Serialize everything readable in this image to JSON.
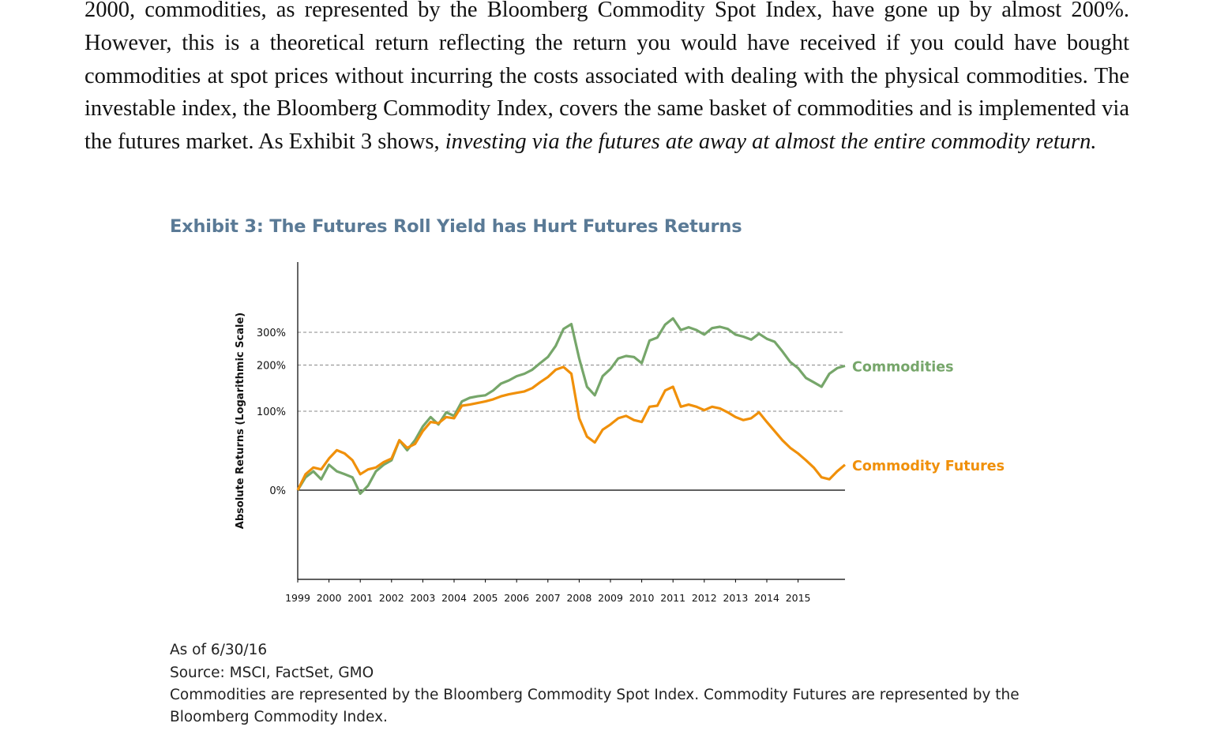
{
  "body_text": {
    "part1": "2000, commodities, as represented by the Bloomberg Commodity Spot Index, have gone up by almost 200%. However, this is a theoretical return reflecting the return you would have received if you could have bought commodities at spot prices without incurring the costs associated with dealing with the physical commodities. The investable index, the Bloomberg Commodity Index, covers the same basket of commodities and is implemented via the futures market. As Exhibit 3 shows, ",
    "emphasis": "investing via the futures ate away at almost the entire commodity return."
  },
  "exhibit_title": "Exhibit 3: The Futures Roll Yield has Hurt Futures Returns",
  "notes": {
    "as_of": "As of 6/30/16",
    "source": "Source: MSCI, FactSet, GMO",
    "disclaimer": "Commodities are represented by the Bloomberg Commodity Spot Index. Commodity Futures are represented by the Bloomberg Commodity Index."
  },
  "colors": {
    "commodities": "#76a66a",
    "futures": "#f0900a",
    "axis": "#000000",
    "grid": "#888888"
  },
  "chart_data": {
    "type": "line",
    "title": "Exhibit 3: The Futures Roll Yield has Hurt Futures Returns",
    "ylabel": "Absolute Returns (Logarithmic Scale)",
    "xlabel": "",
    "y_scale": "log(1+return)",
    "yticks": [
      0,
      100,
      200,
      300
    ],
    "ytick_labels": [
      "0%",
      "100%",
      "200%",
      "300%"
    ],
    "ylim": [
      -60,
      420
    ],
    "xlim": [
      1999.0,
      2016.5
    ],
    "xtick_labels": [
      "1999",
      "2000",
      "2001",
      "2002",
      "2003",
      "2004",
      "2005",
      "2006",
      "2007",
      "2008",
      "2009",
      "2010",
      "2011",
      "2012",
      "2013",
      "2014",
      "2015"
    ],
    "grid": "dashed horizontal at 100%, 200%, 300%",
    "legend": "inline labels at right end of lines",
    "series": [
      {
        "name": "Commodities",
        "color": "#76a66a",
        "x": [
          1999.0,
          1999.25,
          1999.5,
          1999.75,
          2000.0,
          2000.25,
          2000.5,
          2000.75,
          2001.0,
          2001.25,
          2001.5,
          2001.75,
          2002.0,
          2002.25,
          2002.5,
          2002.75,
          2003.0,
          2003.25,
          2003.5,
          2003.75,
          2004.0,
          2004.25,
          2004.5,
          2004.75,
          2005.0,
          2005.25,
          2005.5,
          2005.75,
          2006.0,
          2006.25,
          2006.5,
          2006.75,
          2007.0,
          2007.25,
          2007.5,
          2007.75,
          2008.0,
          2008.25,
          2008.5,
          2008.75,
          2009.0,
          2009.25,
          2009.5,
          2009.75,
          2010.0,
          2010.25,
          2010.5,
          2010.75,
          2011.0,
          2011.25,
          2011.5,
          2011.75,
          2012.0,
          2012.25,
          2012.5,
          2012.75,
          2013.0,
          2013.25,
          2013.5,
          2013.75,
          2014.0,
          2014.25,
          2014.5,
          2014.75,
          2015.0,
          2015.25,
          2015.5,
          2015.75,
          2016.0,
          2016.25,
          2016.5
        ],
        "values": [
          0,
          12,
          18,
          10,
          25,
          18,
          15,
          12,
          -3,
          4,
          18,
          25,
          30,
          55,
          42,
          55,
          75,
          90,
          78,
          98,
          92,
          118,
          125,
          128,
          130,
          140,
          155,
          162,
          172,
          178,
          188,
          205,
          222,
          255,
          312,
          330,
          218,
          148,
          130,
          172,
          190,
          218,
          225,
          222,
          205,
          272,
          282,
          328,
          352,
          308,
          318,
          308,
          292,
          315,
          320,
          312,
          292,
          285,
          275,
          295,
          278,
          268,
          238,
          208,
          192,
          168,
          158,
          148,
          178,
          192,
          198
        ]
      },
      {
        "name": "Commodity Futures",
        "color": "#f0900a",
        "x": [
          1999.0,
          1999.25,
          1999.5,
          1999.75,
          2000.0,
          2000.25,
          2000.5,
          2000.75,
          2001.0,
          2001.25,
          2001.5,
          2001.75,
          2002.0,
          2002.25,
          2002.5,
          2002.75,
          2003.0,
          2003.25,
          2003.5,
          2003.75,
          2004.0,
          2004.25,
          2004.5,
          2004.75,
          2005.0,
          2005.25,
          2005.5,
          2005.75,
          2006.0,
          2006.25,
          2006.5,
          2006.75,
          2007.0,
          2007.25,
          2007.5,
          2007.75,
          2008.0,
          2008.25,
          2008.5,
          2008.75,
          2009.0,
          2009.25,
          2009.5,
          2009.75,
          2010.0,
          2010.25,
          2010.5,
          2010.75,
          2011.0,
          2011.25,
          2011.5,
          2011.75,
          2012.0,
          2012.25,
          2012.5,
          2012.75,
          2013.0,
          2013.25,
          2013.5,
          2013.75,
          2014.0,
          2014.25,
          2014.5,
          2014.75,
          2015.0,
          2015.25,
          2015.5,
          2015.75,
          2016.0,
          2016.25,
          2016.5
        ],
        "values": [
          0,
          15,
          22,
          20,
          32,
          42,
          38,
          30,
          15,
          20,
          22,
          28,
          32,
          55,
          45,
          50,
          68,
          82,
          80,
          90,
          88,
          110,
          112,
          115,
          118,
          122,
          128,
          132,
          135,
          138,
          145,
          158,
          170,
          188,
          195,
          178,
          88,
          60,
          52,
          70,
          78,
          88,
          92,
          85,
          82,
          108,
          110,
          140,
          148,
          108,
          112,
          108,
          102,
          108,
          105,
          98,
          90,
          85,
          88,
          98,
          82,
          68,
          55,
          45,
          38,
          30,
          22,
          12,
          10,
          18,
          25
        ]
      }
    ]
  }
}
